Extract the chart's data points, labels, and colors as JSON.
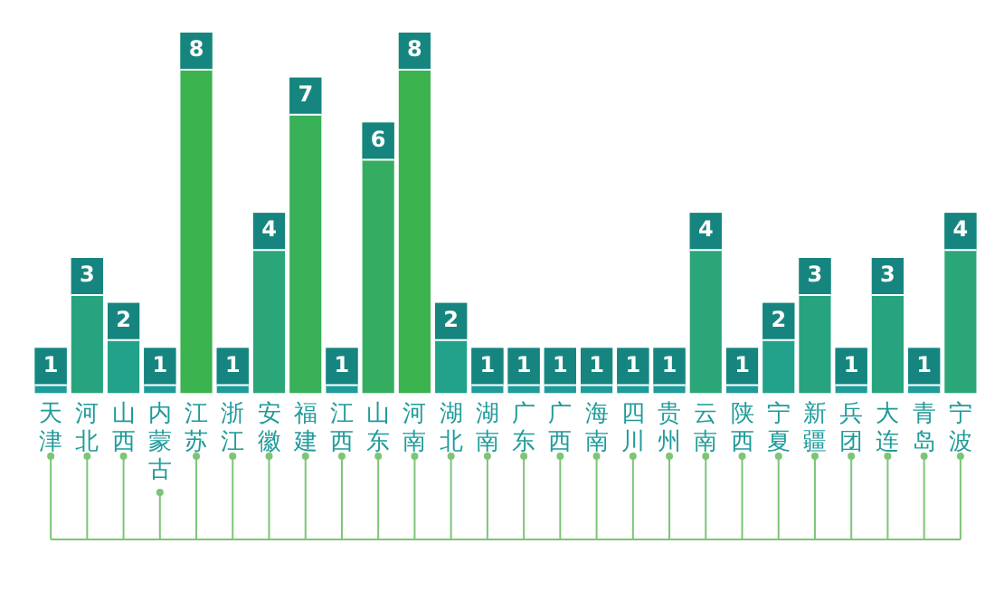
{
  "chart_data": {
    "type": "bar",
    "categories": [
      "天津",
      "河北",
      "山西",
      "内蒙古",
      "江苏",
      "浙江",
      "安徽",
      "福建",
      "江西",
      "山东",
      "河南",
      "湖北",
      "湖南",
      "广东",
      "广西",
      "海南",
      "四川",
      "贵州",
      "云南",
      "陕西",
      "宁夏",
      "新疆",
      "兵团",
      "大连",
      "青岛",
      "宁波"
    ],
    "values": [
      1,
      3,
      2,
      1,
      8,
      1,
      4,
      7,
      1,
      6,
      8,
      2,
      1,
      1,
      1,
      1,
      1,
      1,
      4,
      1,
      2,
      3,
      1,
      3,
      1,
      4
    ],
    "colors": [
      "#1f9b9a",
      "#27a47f",
      "#22a28a",
      "#1f9b9a",
      "#3bb34f",
      "#1f9b9a",
      "#2ba678",
      "#38b058",
      "#1f9b9a",
      "#35ad60",
      "#3bb34f",
      "#22a28a",
      "#1f9b9a",
      "#1f9b9a",
      "#1f9b9a",
      "#1f9b9a",
      "#1f9b9a",
      "#1f9b9a",
      "#2ba678",
      "#1f9b9a",
      "#22a28a",
      "#27a47f",
      "#1f9b9a",
      "#27a47f",
      "#1f9b9a",
      "#2ba678"
    ],
    "data_labels": true,
    "grid": false,
    "legend": false
  }
}
